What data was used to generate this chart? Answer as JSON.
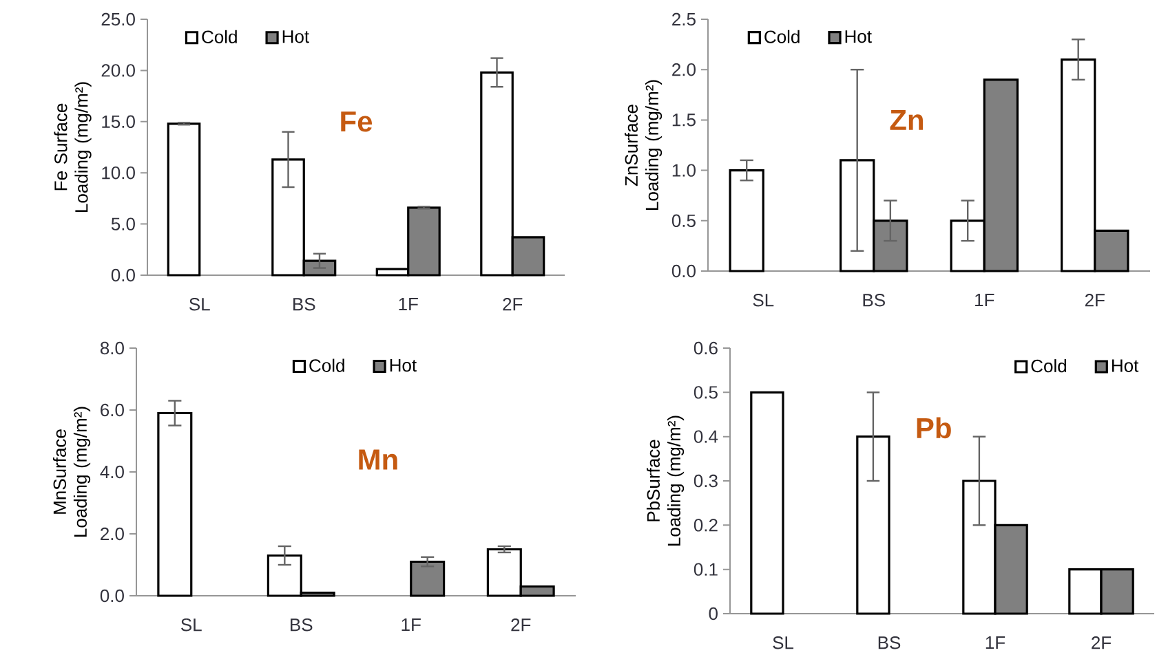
{
  "chart_data": [
    {
      "type": "bar",
      "ylabel": "Fe Surface Loading (mg/m²)",
      "categories": [
        "SL",
        "BS",
        "1F",
        "2F"
      ],
      "series": [
        {
          "name": "Cold",
          "color": "#ffffff",
          "values": [
            14.8,
            11.3,
            0.6,
            19.8
          ],
          "errors": [
            0.1,
            2.7,
            null,
            1.4
          ]
        },
        {
          "name": "Hot",
          "color": "#808080",
          "values": [
            null,
            1.4,
            6.6,
            3.7
          ],
          "errors": [
            null,
            0.7,
            0.1,
            null
          ]
        }
      ],
      "ylim": [
        0,
        25
      ],
      "yticks": [
        {
          "value": 0,
          "label": "0.0"
        },
        {
          "value": 5,
          "label": "5.0"
        },
        {
          "value": 10,
          "label": "10.0"
        },
        {
          "value": 15,
          "label": "15.0"
        },
        {
          "value": 20,
          "label": "20.0"
        },
        {
          "value": 25,
          "label": "25.0"
        }
      ],
      "legend": "top left",
      "annotations": [
        "Fe"
      ]
    },
    {
      "type": "bar",
      "ylabel": "ZnSurface Loading (mg/m²)",
      "categories": [
        "SL",
        "BS",
        "1F",
        "2F"
      ],
      "series": [
        {
          "name": "Cold",
          "color": "#ffffff",
          "values": [
            1.0,
            1.1,
            0.5,
            2.1
          ],
          "errors": [
            0.1,
            0.9,
            0.2,
            0.2
          ]
        },
        {
          "name": "Hot",
          "color": "#808080",
          "values": [
            null,
            0.5,
            1.9,
            0.4
          ],
          "errors": [
            null,
            0.2,
            null,
            null
          ]
        }
      ],
      "ylim": [
        0,
        2.5
      ],
      "yticks": [
        {
          "value": 0,
          "label": "0.0"
        },
        {
          "value": 0.5,
          "label": "0.5"
        },
        {
          "value": 1,
          "label": "1.0"
        },
        {
          "value": 1.5,
          "label": "1.5"
        },
        {
          "value": 2,
          "label": "2.0"
        },
        {
          "value": 2.5,
          "label": "2.5"
        }
      ],
      "legend": "top left",
      "annotations": [
        "Zn"
      ]
    },
    {
      "type": "bar",
      "ylabel": "MnSurface Loading (mg/m²)",
      "categories": [
        "SL",
        "BS",
        "1F",
        "2F"
      ],
      "series": [
        {
          "name": "Cold",
          "color": "#ffffff",
          "values": [
            5.9,
            1.3,
            null,
            1.5
          ],
          "errors": [
            0.4,
            0.3,
            null,
            0.1
          ]
        },
        {
          "name": "Hot",
          "color": "#808080",
          "values": [
            null,
            0.1,
            1.1,
            0.3
          ],
          "errors": [
            null,
            null,
            0.15,
            null
          ]
        }
      ],
      "ylim": [
        0,
        8
      ],
      "yticks": [
        {
          "value": 0,
          "label": "0.0"
        },
        {
          "value": 2,
          "label": "2.0"
        },
        {
          "value": 4,
          "label": "4.0"
        },
        {
          "value": 6,
          "label": "6.0"
        },
        {
          "value": 8,
          "label": "8.0"
        }
      ],
      "legend": "top",
      "annotations": [
        "Mn"
      ]
    },
    {
      "type": "bar",
      "ylabel": "PbSurface Loading (mg/m²)",
      "categories": [
        "SL",
        "BS",
        "1F",
        "2F"
      ],
      "series": [
        {
          "name": "Cold",
          "color": "#ffffff",
          "values": [
            0.5,
            0.4,
            0.3,
            0.1
          ],
          "errors": [
            null,
            0.1,
            0.1,
            null
          ]
        },
        {
          "name": "Hot",
          "color": "#808080",
          "values": [
            null,
            null,
            0.2,
            0.1
          ],
          "errors": [
            null,
            null,
            null,
            null
          ]
        }
      ],
      "ylim": [
        0,
        0.6
      ],
      "yticks": [
        0,
        0.1,
        0.2,
        0.3,
        0.4,
        0.5,
        0.6
      ],
      "legend": "top right",
      "annotations": [
        "Pb"
      ]
    }
  ]
}
